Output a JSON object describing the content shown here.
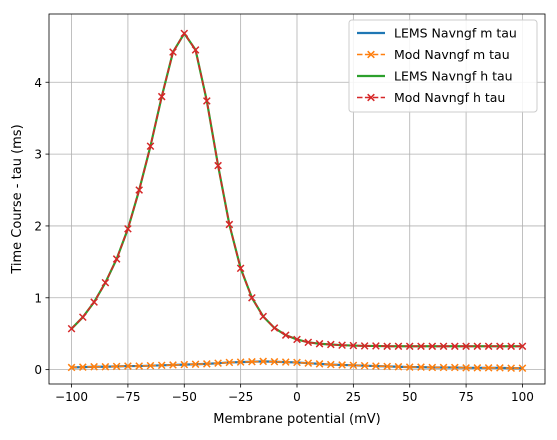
{
  "chart_data": {
    "type": "line",
    "xlabel": "Membrane potential (mV)",
    "ylabel": "Time Course - tau (ms)",
    "xlim": [
      -110,
      110
    ],
    "ylim": [
      -0.2,
      4.95
    ],
    "xticks": [
      -100,
      -75,
      -50,
      -25,
      0,
      25,
      50,
      75,
      100
    ],
    "xtick_labels": [
      "−100",
      "−75",
      "−50",
      "−25",
      "0",
      "25",
      "50",
      "75",
      "100"
    ],
    "yticks": [
      0,
      1,
      2,
      3,
      4
    ],
    "ytick_labels": [
      "0",
      "1",
      "2",
      "3",
      "4"
    ],
    "grid": true,
    "legend_position": "top-right",
    "x": [
      -100,
      -95,
      -90,
      -85,
      -80,
      -75,
      -70,
      -65,
      -60,
      -55,
      -50,
      -45,
      -40,
      -35,
      -30,
      -25,
      -20,
      -15,
      -10,
      -5,
      0,
      5,
      10,
      15,
      20,
      25,
      30,
      35,
      40,
      45,
      50,
      55,
      60,
      65,
      70,
      75,
      80,
      85,
      90,
      95,
      100
    ],
    "series": [
      {
        "name": "LEMS Navngf m tau",
        "color": "#1f77b4",
        "style": "solid",
        "marker": "none",
        "values": [
          0.03,
          0.035,
          0.04,
          0.04,
          0.045,
          0.05,
          0.05,
          0.055,
          0.06,
          0.065,
          0.07,
          0.075,
          0.08,
          0.09,
          0.1,
          0.105,
          0.11,
          0.115,
          0.11,
          0.105,
          0.1,
          0.09,
          0.08,
          0.07,
          0.065,
          0.06,
          0.055,
          0.05,
          0.045,
          0.04,
          0.035,
          0.035,
          0.03,
          0.03,
          0.03,
          0.025,
          0.025,
          0.025,
          0.025,
          0.02,
          0.02
        ]
      },
      {
        "name": "Mod Navngf m tau",
        "color": "#ff7f0e",
        "style": "dashed",
        "marker": "x",
        "values": [
          0.03,
          0.035,
          0.04,
          0.04,
          0.045,
          0.05,
          0.05,
          0.055,
          0.06,
          0.065,
          0.07,
          0.075,
          0.08,
          0.09,
          0.1,
          0.105,
          0.11,
          0.115,
          0.11,
          0.105,
          0.1,
          0.09,
          0.08,
          0.07,
          0.065,
          0.06,
          0.055,
          0.05,
          0.045,
          0.04,
          0.035,
          0.035,
          0.03,
          0.03,
          0.03,
          0.025,
          0.025,
          0.025,
          0.025,
          0.02,
          0.02
        ]
      },
      {
        "name": "LEMS Navngf h tau",
        "color": "#2ca02c",
        "style": "solid",
        "marker": "none",
        "values": [
          0.57,
          0.73,
          0.94,
          1.21,
          1.54,
          1.96,
          2.5,
          3.11,
          3.8,
          4.42,
          4.68,
          4.45,
          3.74,
          2.84,
          2.02,
          1.41,
          1.0,
          0.74,
          0.58,
          0.48,
          0.42,
          0.38,
          0.36,
          0.35,
          0.34,
          0.335,
          0.33,
          0.33,
          0.325,
          0.325,
          0.325,
          0.325,
          0.325,
          0.325,
          0.325,
          0.325,
          0.325,
          0.325,
          0.325,
          0.325,
          0.325
        ]
      },
      {
        "name": "Mod Navngf h tau",
        "color": "#d62728",
        "style": "dashed",
        "marker": "x",
        "values": [
          0.57,
          0.73,
          0.94,
          1.21,
          1.54,
          1.96,
          2.5,
          3.11,
          3.8,
          4.42,
          4.68,
          4.45,
          3.74,
          2.84,
          2.02,
          1.41,
          1.0,
          0.74,
          0.58,
          0.48,
          0.42,
          0.38,
          0.36,
          0.35,
          0.34,
          0.335,
          0.33,
          0.33,
          0.325,
          0.325,
          0.325,
          0.325,
          0.325,
          0.325,
          0.325,
          0.325,
          0.325,
          0.325,
          0.325,
          0.325,
          0.325
        ]
      }
    ]
  }
}
